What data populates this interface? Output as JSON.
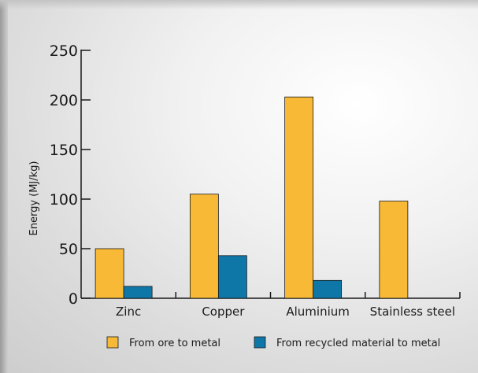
{
  "chart_data": {
    "type": "bar",
    "categories": [
      "Zinc",
      "Copper",
      "Aluminium",
      "Stainless steel"
    ],
    "series": [
      {
        "name": "From ore to metal",
        "values": [
          50,
          105,
          203,
          98
        ]
      },
      {
        "name": "From recycled material to metal",
        "values": [
          12,
          43,
          18,
          null
        ]
      }
    ],
    "ylabel": "Energy (MJ/kg)",
    "xlabel": "",
    "title": "",
    "ylim": [
      0,
      250
    ],
    "yticks": [
      0,
      50,
      100,
      150,
      200,
      250
    ],
    "grid": false,
    "legend_position": "bottom"
  },
  "colors": {
    "ore": "#f7b936",
    "recycled": "#0f77a8",
    "axis": "#1a1a1a",
    "bar_edge": "#1a1a1a"
  }
}
